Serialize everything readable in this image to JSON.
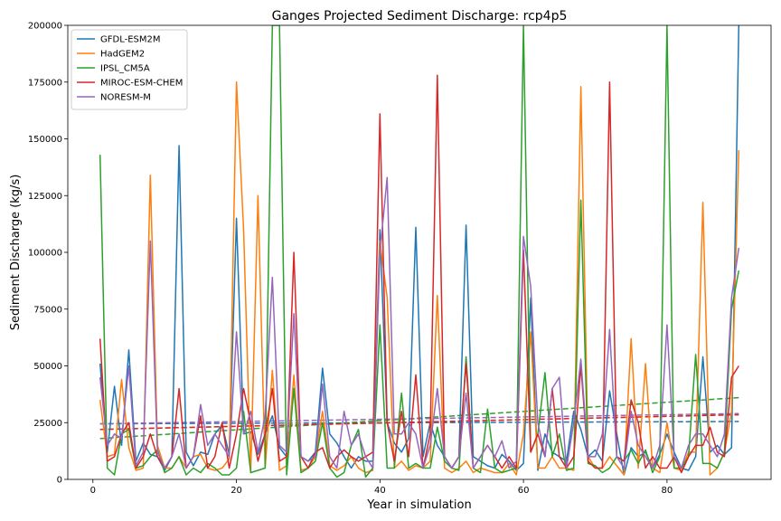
{
  "chart_data": {
    "type": "line",
    "title": "Ganges Projected Sediment Discharge: rcp4p5",
    "xlabel": "Year in simulation",
    "ylabel": "Sediment Discharge (kg/s)",
    "xlim": [
      -3.5,
      94.5
    ],
    "ylim": [
      0,
      200000
    ],
    "xticks": [
      0,
      20,
      40,
      60,
      80
    ],
    "yticks": [
      0,
      25000,
      50000,
      75000,
      100000,
      125000,
      150000,
      175000,
      200000
    ],
    "xtick_labels": [
      "0",
      "20",
      "40",
      "60",
      "80"
    ],
    "ytick_labels": [
      "0",
      "25000",
      "50000",
      "75000",
      "100000",
      "125000",
      "150000",
      "175000",
      "200000"
    ],
    "grid": false,
    "legend_position": "upper-left",
    "x": [
      1,
      2,
      3,
      4,
      5,
      6,
      7,
      8,
      9,
      10,
      11,
      12,
      13,
      14,
      15,
      16,
      17,
      18,
      19,
      20,
      21,
      22,
      23,
      24,
      25,
      26,
      27,
      28,
      29,
      30,
      31,
      32,
      33,
      34,
      35,
      36,
      37,
      38,
      39,
      40,
      41,
      42,
      43,
      44,
      45,
      46,
      47,
      48,
      49,
      50,
      51,
      52,
      53,
      54,
      55,
      56,
      57,
      58,
      59,
      60,
      61,
      62,
      63,
      64,
      65,
      66,
      67,
      68,
      69,
      70,
      71,
      72,
      73,
      74,
      75,
      76,
      77,
      78,
      79,
      80,
      81,
      82,
      83,
      84,
      85,
      86,
      87,
      88,
      89,
      90
    ],
    "series": [
      {
        "name": "GFDL-ESM2M",
        "color": "#1f77b4",
        "values": [
          51000,
          12000,
          41000,
          15000,
          57000,
          8000,
          16000,
          11000,
          10000,
          4000,
          10000,
          147000,
          12000,
          6000,
          12000,
          11000,
          20000,
          24000,
          11000,
          115000,
          20000,
          21000,
          11000,
          20000,
          28000,
          14000,
          10000,
          40000,
          10000,
          8000,
          12000,
          49000,
          20000,
          16000,
          10000,
          5000,
          10000,
          8000,
          8000,
          110000,
          25000,
          16000,
          12000,
          18000,
          111000,
          10000,
          25000,
          15000,
          10000,
          5000,
          10000,
          112000,
          10000,
          8000,
          6000,
          5000,
          11000,
          8000,
          4000,
          7000,
          80000,
          4000,
          20000,
          12000,
          10000,
          8000,
          30000,
          22000,
          10000,
          13000,
          8000,
          39000,
          20000,
          2000,
          14000,
          10000,
          12000,
          5000,
          11000,
          20000,
          12000,
          5000,
          4000,
          10000,
          54000,
          12000,
          15000,
          11000,
          14000,
          200000
        ],
        "trend": [
          24500,
          25500
        ]
      },
      {
        "name": "HadGEM2",
        "color": "#ff7f0e",
        "values": [
          35000,
          10000,
          11000,
          44000,
          14000,
          4000,
          5000,
          134000,
          15000,
          5000,
          5000,
          10000,
          5000,
          10000,
          11000,
          5000,
          4000,
          5000,
          9000,
          175000,
          110000,
          3000,
          125000,
          5000,
          48000,
          4000,
          6000,
          46000,
          4000,
          5000,
          10000,
          30000,
          6000,
          4000,
          6000,
          10000,
          5000,
          3000,
          4000,
          105000,
          80000,
          5000,
          8000,
          4000,
          6000,
          5000,
          8000,
          81000,
          5000,
          3000,
          5000,
          8000,
          3000,
          5000,
          4000,
          3000,
          3000,
          7000,
          2000,
          20000,
          65000,
          5000,
          5000,
          10000,
          5000,
          5000,
          4000,
          173000,
          10000,
          5000,
          5000,
          10000,
          6000,
          2000,
          62000,
          5000,
          51000,
          5000,
          3000,
          25000,
          5000,
          4000,
          12000,
          12000,
          122000,
          2000,
          5000,
          12000,
          30000,
          145000
        ],
        "trend": [
          22000,
          28500
        ]
      },
      {
        "name": "IPSL_CM5A",
        "color": "#2ca02c",
        "values": [
          143000,
          5000,
          2000,
          20000,
          22000,
          5000,
          6000,
          10000,
          13000,
          3000,
          5000,
          10000,
          2000,
          5000,
          3000,
          7000,
          5000,
          2000,
          2000,
          5000,
          30000,
          3000,
          4000,
          5000,
          200000,
          200000,
          2000,
          40000,
          3000,
          5000,
          8000,
          25000,
          5000,
          1000,
          3000,
          15000,
          22000,
          1000,
          5000,
          68000,
          5000,
          5000,
          38000,
          5000,
          7000,
          5000,
          5000,
          23000,
          8000,
          5000,
          4000,
          54000,
          5000,
          3000,
          31000,
          5000,
          3000,
          4000,
          5000,
          200000,
          12000,
          20000,
          47000,
          10000,
          20000,
          4000,
          5000,
          123000,
          7000,
          6000,
          3000,
          5000,
          10000,
          8000,
          13000,
          7000,
          13000,
          3000,
          10000,
          200000,
          5000,
          5000,
          10000,
          55000,
          7000,
          7000,
          5000,
          12000,
          75000,
          92000
        ],
        "trend": [
          18000,
          36000
        ]
      },
      {
        "name": "MIROC-ESM-CHEM",
        "color": "#d62728",
        "values": [
          62000,
          8000,
          10000,
          20000,
          25000,
          5000,
          10000,
          20000,
          10000,
          5000,
          10000,
          40000,
          5000,
          10000,
          28000,
          5000,
          10000,
          25000,
          5000,
          20000,
          40000,
          25000,
          8000,
          20000,
          40000,
          8000,
          10000,
          100000,
          10000,
          5000,
          12000,
          14000,
          5000,
          10000,
          13000,
          10000,
          8000,
          10000,
          12000,
          161000,
          25000,
          8000,
          30000,
          10000,
          46000,
          5000,
          20000,
          178000,
          10000,
          5000,
          10000,
          51000,
          5000,
          10000,
          15000,
          10000,
          5000,
          10000,
          5000,
          101000,
          12000,
          20000,
          10000,
          40000,
          10000,
          5000,
          10000,
          50000,
          8000,
          5000,
          5000,
          175000,
          10000,
          8000,
          35000,
          25000,
          5000,
          10000,
          5000,
          5000,
          10000,
          3000,
          10000,
          15000,
          15000,
          23000,
          12000,
          10000,
          45000,
          50000
        ],
        "trend": [
          22000,
          28500
        ]
      },
      {
        "name": "NORESM-M",
        "color": "#9467bd",
        "values": [
          45000,
          15000,
          20000,
          18000,
          50000,
          6000,
          12000,
          105000,
          12000,
          5000,
          10000,
          20000,
          5000,
          10000,
          33000,
          15000,
          20000,
          15000,
          10000,
          65000,
          20000,
          30000,
          12000,
          28000,
          89000,
          15000,
          12000,
          73000,
          10000,
          8000,
          10000,
          42000,
          10000,
          5000,
          30000,
          15000,
          20000,
          10000,
          5000,
          100000,
          133000,
          20000,
          20000,
          25000,
          20000,
          5000,
          15000,
          40000,
          10000,
          5000,
          10000,
          38000,
          5000,
          10000,
          15000,
          10000,
          17000,
          5000,
          8000,
          107000,
          85000,
          25000,
          10000,
          40000,
          45000,
          5000,
          25000,
          53000,
          10000,
          10000,
          20000,
          66000,
          10000,
          5000,
          30000,
          15000,
          10000,
          5000,
          15000,
          68000,
          10000,
          5000,
          15000,
          20000,
          20000,
          15000,
          10000,
          20000,
          80000,
          102000
        ],
        "trend": [
          24500,
          29000
        ]
      }
    ]
  }
}
